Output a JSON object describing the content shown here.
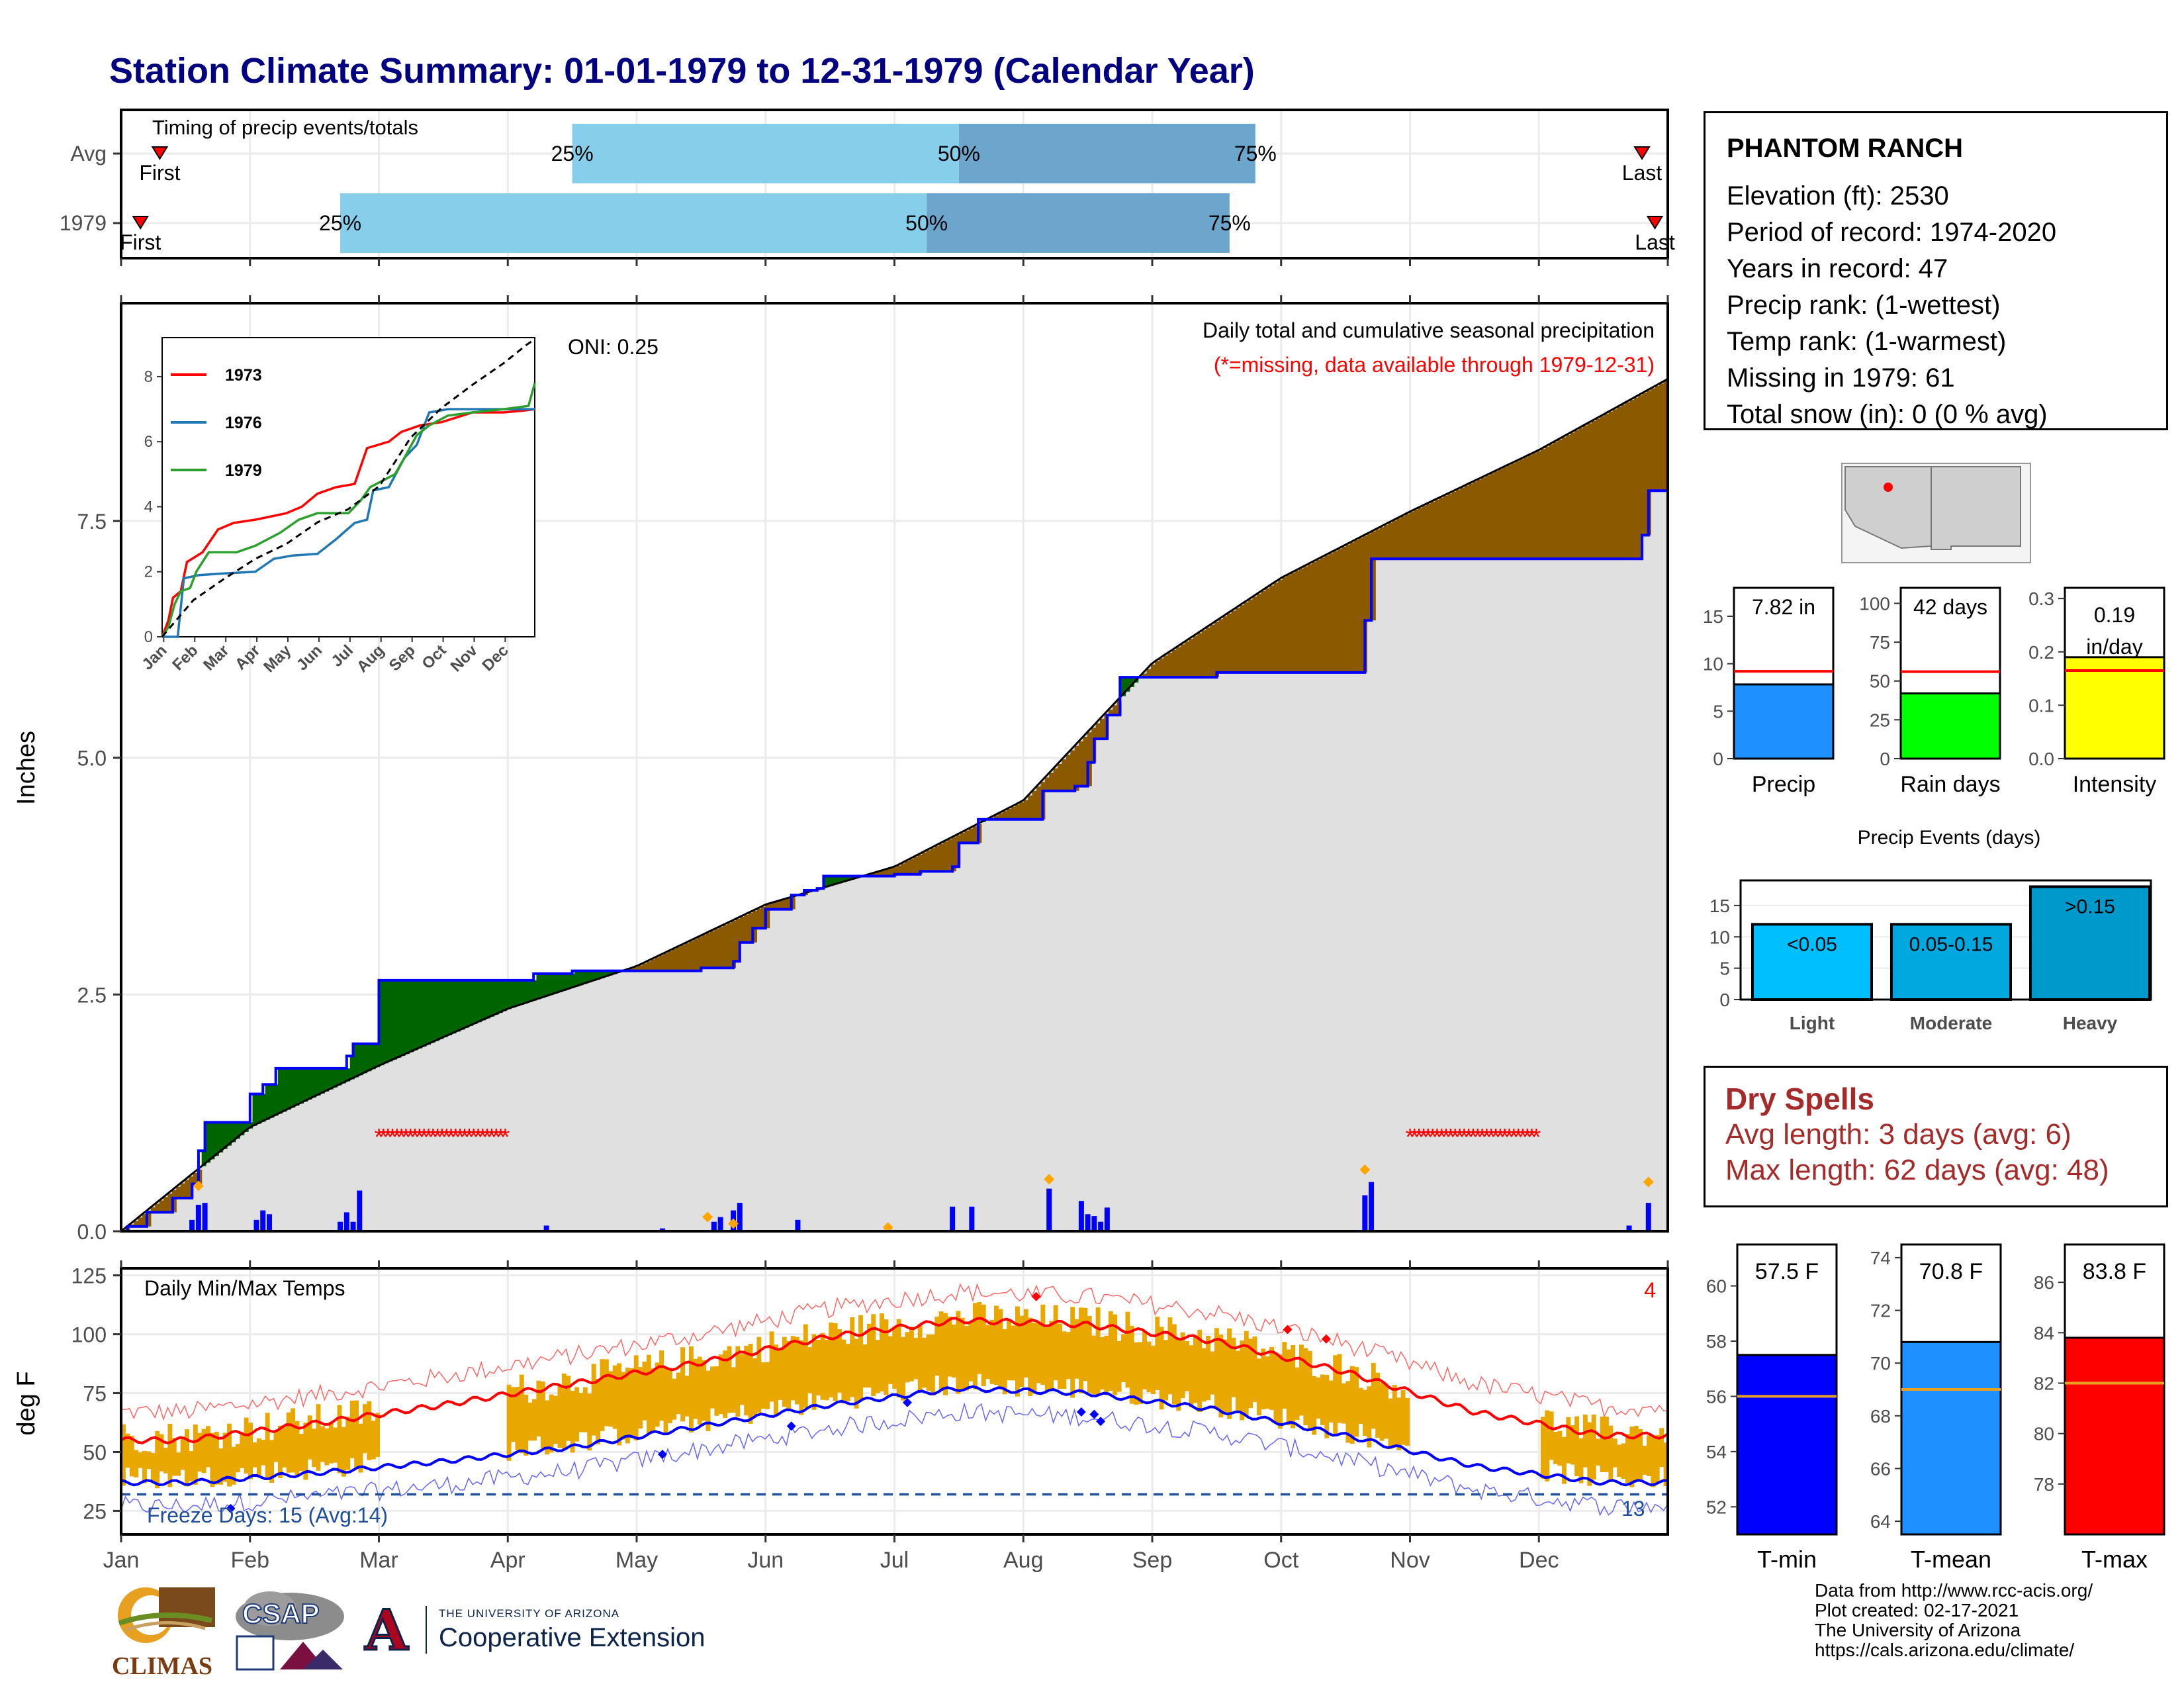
{
  "title": "Station Climate Summary: 01-01-1979 to 12-31-1979 (Calendar Year)",
  "timing_panel": {
    "label": "Timing of precip events/totals",
    "rows": [
      {
        "name": "Avg",
        "first_label": "First",
        "last_label": "Last",
        "first_month": 0.3,
        "last_month": 11.8,
        "p25": 3.5,
        "p50": 6.5,
        "p75": 8.8
      },
      {
        "name": "1979",
        "first_label": "First",
        "last_label": "Last",
        "first_month": 0.15,
        "last_month": 11.9,
        "p25": 1.7,
        "p50": 6.25,
        "p75": 8.6
      }
    ],
    "p25_label": "25%",
    "p50_label": "50%",
    "p75_label": "75%",
    "colors": {
      "early": "#87ceeb",
      "late": "#6ca6cd"
    }
  },
  "precip_panel": {
    "caption": "Daily total and cumulative seasonal precipitation",
    "missing_note": "(*=missing, data available through 1979-12-31)",
    "oni": "ONI: 0.25",
    "ylabel": "Inches",
    "yticks": [
      0.0,
      2.5,
      5.0,
      7.5
    ],
    "ytick_labels": [
      "0.0",
      "2.5",
      "5.0",
      "7.5"
    ],
    "ylim": [
      0,
      9.8
    ],
    "missing_ranges": [
      [
        2.0,
        3.0
      ],
      [
        10.0,
        11.0
      ]
    ],
    "colors": {
      "above": "#006400",
      "below": "#8b5a00",
      "avg_fill": "#e0e0e0",
      "obs_line": "#0000ff",
      "bars": "#0000ff",
      "diamonds": "#ffa500",
      "missing": "#ff0000"
    }
  },
  "inset": {
    "series": [
      {
        "name": "1973",
        "color": "#ff0000"
      },
      {
        "name": "1976",
        "color": "#1f77b4"
      },
      {
        "name": "1979",
        "color": "#2ca02c"
      }
    ],
    "yticks": [
      "0",
      "2",
      "4",
      "6",
      "8"
    ],
    "xticks": [
      "Jan",
      "Feb",
      "Mar",
      "Apr",
      "May",
      "Jun",
      "Jul",
      "Aug",
      "Sep",
      "Oct",
      "Nov",
      "Dec"
    ]
  },
  "temp_panel": {
    "caption": "Daily Min/Max Temps",
    "ylabel": "deg F",
    "yticks": [
      "25",
      "50",
      "75",
      "100",
      "125"
    ],
    "freeze_label": "Freeze Days: 15 (Avg:14)",
    "top_right_count": "4",
    "bottom_right_count": "13",
    "ylim": [
      15,
      128
    ],
    "colors": {
      "bars": "#e8a800",
      "avg_max": "#ff0000",
      "avg_min": "#0000ff",
      "freeze": "#1f4e9a"
    }
  },
  "months": [
    "Jan",
    "Feb",
    "Mar",
    "Apr",
    "May",
    "Jun",
    "Jul",
    "Aug",
    "Sep",
    "Oct",
    "Nov",
    "Dec"
  ],
  "station": {
    "name": "PHANTOM RANCH",
    "lines": [
      "Elevation (ft): 2530",
      "Period of record: 1974-2020",
      "Years in record: 47",
      "Precip rank:  (1-wettest)",
      "Temp rank:  (1-warmest)",
      "Missing in 1979: 61",
      "Total snow (in): 0 (0 % avg)"
    ]
  },
  "summary_bars": [
    {
      "label": "Precip",
      "value_label": "7.82 in",
      "value": 7.82,
      "avg": 9.2,
      "ymax": 18,
      "ticks": [
        "0",
        "5",
        "10",
        "15"
      ],
      "tickvals": [
        0,
        5,
        10,
        15
      ],
      "color": "#1e90ff"
    },
    {
      "label": "Rain days",
      "value_label": "42 days",
      "value": 42,
      "avg": 56,
      "ymax": 110,
      "ticks": [
        "0",
        "25",
        "50",
        "75",
        "100"
      ],
      "tickvals": [
        0,
        25,
        50,
        75,
        100
      ],
      "color": "#00ff00"
    },
    {
      "label": "Intensity",
      "value_label": "0.19 in/day",
      "value": 0.19,
      "avg": 0.165,
      "ymax": 0.32,
      "ticks": [
        "0.0",
        "0.1",
        "0.2",
        "0.3"
      ],
      "tickvals": [
        0,
        0.1,
        0.2,
        0.3
      ],
      "color": "#ffff00"
    }
  ],
  "precip_events": {
    "title": "Precip Events (days)",
    "ticks": [
      "0",
      "5",
      "10",
      "15"
    ],
    "categories": [
      {
        "label": "Light",
        "bar_label": "<0.05",
        "value": 12,
        "color": "#00bfff"
      },
      {
        "label": "Moderate",
        "bar_label": "0.05-0.15",
        "value": 12,
        "color": "#00a8e0"
      },
      {
        "label": "Heavy",
        "bar_label": ">0.15",
        "value": 18,
        "color": "#0099cc"
      }
    ]
  },
  "dry_spells": {
    "title": "Dry Spells",
    "avg_line": "Avg length: 3 days (avg: 6)",
    "max_line": "Max length: 62 days (avg: 48)"
  },
  "temp_bars": [
    {
      "label": "T-min",
      "value_label": "57.5 F",
      "value": 57.5,
      "avg": 56,
      "ymin": 51,
      "ymax": 61.5,
      "ticks": [
        "52",
        "54",
        "56",
        "58",
        "60"
      ],
      "tickvals": [
        52,
        54,
        56,
        58,
        60
      ],
      "color": "#0000ff"
    },
    {
      "label": "T-mean",
      "value_label": "70.8 F",
      "value": 70.8,
      "avg": 69,
      "ymin": 63.5,
      "ymax": 74.5,
      "ticks": [
        "64",
        "66",
        "68",
        "70",
        "72",
        "74"
      ],
      "tickvals": [
        64,
        66,
        68,
        70,
        72,
        74
      ],
      "color": "#1e90ff"
    },
    {
      "label": "T-max",
      "value_label": "83.8 F",
      "value": 83.8,
      "avg": 82,
      "ymin": 76,
      "ymax": 87.5,
      "ticks": [
        "78",
        "80",
        "82",
        "84",
        "86"
      ],
      "tickvals": [
        78,
        80,
        82,
        84,
        86
      ],
      "color": "#ff0000"
    }
  ],
  "credits": [
    "Data from http://www.rcc-acis.org/",
    "Plot created: 02-17-2021",
    "The University of Arizona",
    "https://cals.arizona.edu/climate/"
  ],
  "logos": {
    "climas": "CLIMAS",
    "csap": "CSAP",
    "ua_top": "THE UNIVERSITY OF ARIZONA",
    "ua_bottom": "Cooperative Extension",
    "ua_letter": "A"
  },
  "chart_data": [
    {
      "type": "bar",
      "title": "Timing of precip events/totals",
      "categories": [
        "Avg",
        "1979"
      ],
      "series": [
        {
          "name": "25%",
          "values": [
            3.5,
            1.7
          ]
        },
        {
          "name": "50%",
          "values": [
            6.5,
            6.25
          ]
        },
        {
          "name": "75%",
          "values": [
            8.8,
            8.6
          ]
        }
      ]
    },
    {
      "type": "area",
      "title": "Daily total and cumulative seasonal precipitation",
      "ylabel": "Inches",
      "ylim": [
        0,
        9.8
      ],
      "x": [
        "Jan",
        "Feb",
        "Mar",
        "Apr",
        "May",
        "Jun",
        "Jul",
        "Aug",
        "Sep",
        "Oct",
        "Nov",
        "Dec",
        "Dec 31"
      ],
      "series": [
        {
          "name": "avg cumulative",
          "values": [
            0.0,
            1.1,
            1.75,
            2.35,
            2.8,
            3.45,
            3.85,
            4.55,
            6.0,
            6.9,
            7.6,
            8.25,
            9.0
          ]
        },
        {
          "name": "1979 cumulative",
          "values": [
            0.0,
            1.15,
            2.65,
            2.65,
            2.8,
            3.75,
            3.8,
            4.25,
            5.9,
            5.9,
            7.1,
            7.1,
            7.82
          ]
        }
      ]
    },
    {
      "type": "line",
      "title": "Daily Min/Max Temps",
      "ylabel": "deg F",
      "ylim": [
        15,
        128
      ],
      "x": [
        "Jan",
        "Feb",
        "Mar",
        "Apr",
        "May",
        "Jun",
        "Jul",
        "Aug",
        "Sep",
        "Oct",
        "Nov",
        "Dec"
      ],
      "series": [
        {
          "name": "avg max",
          "values": [
            55,
            62,
            70,
            79,
            88,
            99,
            106,
            104,
            97,
            84,
            67,
            57
          ]
        },
        {
          "name": "avg min",
          "values": [
            37,
            41,
            46,
            52,
            61,
            70,
            77,
            75,
            68,
            57,
            44,
            37
          ]
        }
      ]
    }
  ]
}
